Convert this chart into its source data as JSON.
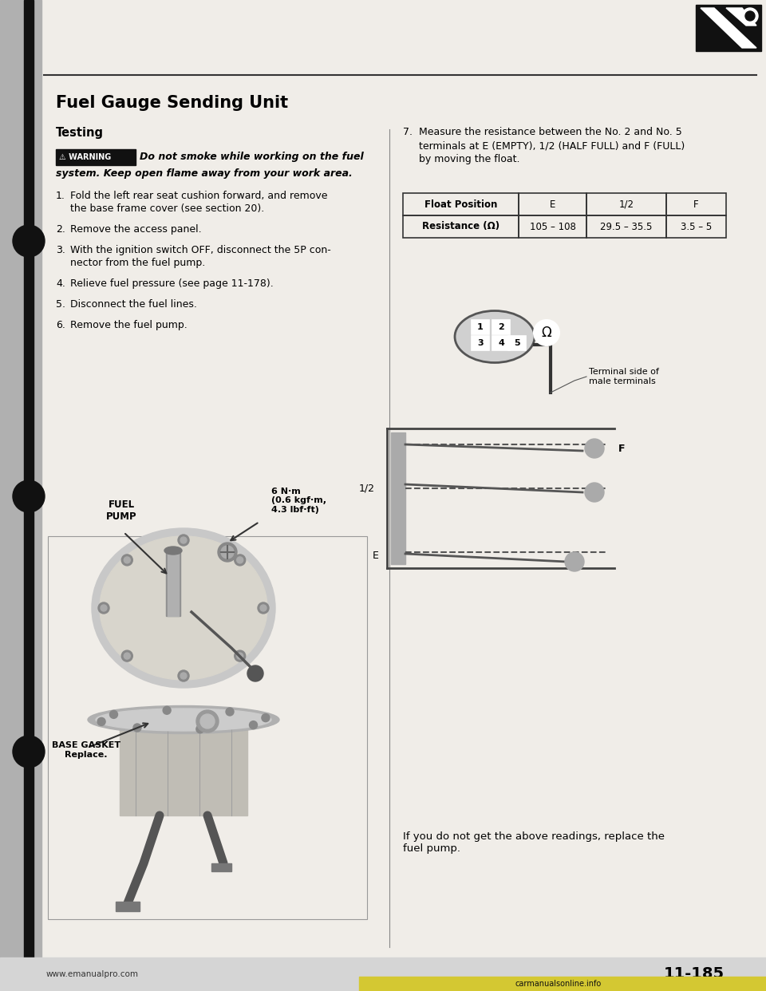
{
  "title": "Fuel Gauge Sending Unit",
  "subtitle": "Testing",
  "page_number": "11-185",
  "website_left": "www.emanualpro.com",
  "website_bottom": "carmanualsonline.info",
  "bg_color": "#e8e8e8",
  "page_bg": "#f0ede8",
  "warning_text_line1": "Do not smoke while working on the fuel",
  "warning_text_line2": "system. Keep open flame away from your work area.",
  "step7_text": "Measure the resistance between the No. 2 and No. 5\nterminals at E (EMPTY), 1/2 (HALF FULL) and F (FULL)\nby moving the float.",
  "steps": [
    "Fold the left rear seat cushion forward, and remove\nthe base frame cover (see section 20).",
    "Remove the access panel.",
    "With the ignition switch OFF, disconnect the 5P con-\nnector from the fuel pump.",
    "Relieve fuel pressure (see page 11-178).",
    "Disconnect the fuel lines.",
    "Remove the fuel pump."
  ],
  "table_headers": [
    "Float Position",
    "E",
    "1/2",
    "F"
  ],
  "table_row": [
    "Resistance (Ω)",
    "105 – 108",
    "29.5 – 35.5",
    "3.5 – 5"
  ],
  "bottom_note": "If you do not get the above readings, replace the\nfuel pump.",
  "fuel_pump_label": "FUEL\nPUMP",
  "torque_label": "6 N·m\n(0.6 kgf·m,\n4.3 lbf·ft)",
  "base_gasket_label": "BASE GASKET\nReplace.",
  "terminal_label": "Terminal side of\nmale terminals"
}
